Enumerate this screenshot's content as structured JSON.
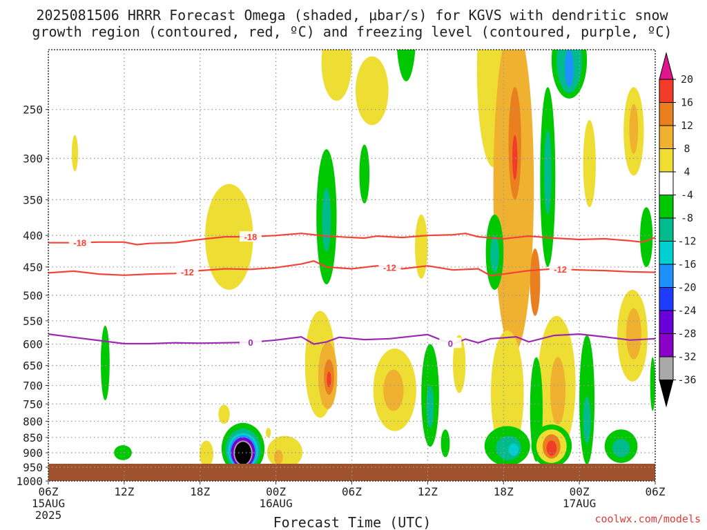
{
  "colors": {
    "plot_bg": "#ffffff",
    "grid": "#999999",
    "ground": "#a0522d",
    "dgz": "#f44336",
    "freezing": "#9c27b0",
    "credit": "#e53935",
    "text": "#222222"
  },
  "chart_data": {
    "type": "heatmap",
    "title": "2025081506 HRRR Forecast Omega (shaded, μbar/s) for KGVS with dendritic snow",
    "subtitle": "growth region (contoured, red, ºC) and freezing level (contoured, purple, ºC)",
    "xlabel": "Forecast Time (UTC)",
    "ylabel": "",
    "credit": "coolwx.com/models",
    "y_scale": "log-pressure",
    "ylim": [
      1000,
      200
    ],
    "xlim": [
      0,
      48
    ],
    "grid": true,
    "x_ticks": [
      {
        "hour": 0,
        "label": "06Z",
        "date": "15AUG",
        "year": "2025"
      },
      {
        "hour": 6,
        "label": "12Z"
      },
      {
        "hour": 12,
        "label": "18Z"
      },
      {
        "hour": 18,
        "label": "00Z",
        "date": "16AUG"
      },
      {
        "hour": 24,
        "label": "06Z"
      },
      {
        "hour": 30,
        "label": "12Z"
      },
      {
        "hour": 36,
        "label": "18Z"
      },
      {
        "hour": 42,
        "label": "00Z",
        "date": "17AUG"
      },
      {
        "hour": 48,
        "label": "06Z"
      }
    ],
    "y_ticks": [
      250,
      300,
      350,
      400,
      450,
      500,
      550,
      600,
      650,
      700,
      750,
      800,
      850,
      900,
      950,
      1000
    ],
    "colorbar": {
      "levels": [
        -36,
        -32,
        -28,
        -24,
        -20,
        -16,
        -12,
        -8,
        -4,
        4,
        8,
        12,
        16,
        20
      ],
      "labels": [
        "-36",
        "-32",
        "-28",
        "-24",
        "-20",
        "-16",
        "-12",
        "-8",
        "-4",
        "4",
        "8",
        "12",
        "16",
        "20"
      ],
      "colors": [
        "#000000",
        "#a9a9a9",
        "#8b00c8",
        "#6a00d8",
        "#1e3cff",
        "#1e90ff",
        "#00ced1",
        "#00bc8c",
        "#00c800",
        "#ffffff",
        "#eedd33",
        "#f0b030",
        "#ea7f20",
        "#f03c28",
        "#e0148c"
      ]
    },
    "contours": [
      {
        "value": -18,
        "label": "-18",
        "color": "#f44336",
        "points": [
          [
            0,
            411
          ],
          [
            2,
            411
          ],
          [
            4,
            410
          ],
          [
            6,
            410
          ],
          [
            7,
            414
          ],
          [
            8,
            412
          ],
          [
            10,
            411
          ],
          [
            12,
            406
          ],
          [
            14,
            402
          ],
          [
            16,
            402
          ],
          [
            18,
            400
          ],
          [
            20,
            397
          ],
          [
            22,
            401
          ],
          [
            24,
            403
          ],
          [
            25,
            404
          ],
          [
            26,
            401
          ],
          [
            28,
            403
          ],
          [
            30,
            400
          ],
          [
            32,
            399
          ],
          [
            33,
            397
          ],
          [
            34,
            402
          ],
          [
            36,
            405
          ],
          [
            38,
            401
          ],
          [
            40,
            404
          ],
          [
            42,
            406
          ],
          [
            44,
            405
          ],
          [
            46,
            408
          ],
          [
            47,
            410
          ],
          [
            48,
            403
          ]
        ],
        "label_hours": [
          2.5,
          16
        ]
      },
      {
        "value": -12,
        "label": "-12",
        "color": "#f44336",
        "points": [
          [
            0,
            460
          ],
          [
            2,
            457
          ],
          [
            4,
            462
          ],
          [
            6,
            464
          ],
          [
            8,
            462
          ],
          [
            10,
            461
          ],
          [
            12,
            456
          ],
          [
            14,
            453
          ],
          [
            16,
            454
          ],
          [
            18,
            451
          ],
          [
            20,
            445
          ],
          [
            21,
            440
          ],
          [
            22,
            450
          ],
          [
            24,
            453
          ],
          [
            26,
            448
          ],
          [
            28,
            453
          ],
          [
            30,
            448
          ],
          [
            32,
            455
          ],
          [
            34,
            453
          ],
          [
            35,
            465
          ],
          [
            36,
            462
          ],
          [
            38,
            456
          ],
          [
            40,
            453
          ],
          [
            42,
            455
          ],
          [
            44,
            456
          ],
          [
            46,
            458
          ],
          [
            48,
            459
          ]
        ],
        "label_hours": [
          11,
          27,
          40.5
        ]
      },
      {
        "value": 0,
        "label": "0",
        "color": "#9c27b0",
        "points": [
          [
            0,
            578
          ],
          [
            2,
            585
          ],
          [
            4,
            592
          ],
          [
            6,
            599
          ],
          [
            8,
            599
          ],
          [
            10,
            597
          ],
          [
            12,
            598
          ],
          [
            14,
            597
          ],
          [
            16,
            596
          ],
          [
            18,
            591
          ],
          [
            20,
            584
          ],
          [
            21,
            600
          ],
          [
            22,
            595
          ],
          [
            23,
            585
          ],
          [
            25,
            590
          ],
          [
            27,
            588
          ],
          [
            30,
            579
          ],
          [
            31,
            590
          ],
          [
            32,
            600
          ],
          [
            33,
            589
          ],
          [
            34,
            597
          ],
          [
            35,
            588
          ],
          [
            37,
            584
          ],
          [
            38,
            595
          ],
          [
            40,
            581
          ],
          [
            42,
            578
          ],
          [
            44,
            584
          ],
          [
            46,
            591
          ],
          [
            48,
            588
          ]
        ],
        "label_hours": [
          16,
          31.8
        ]
      }
    ],
    "regions": [
      {
        "class": "4-8",
        "cx": 22.8,
        "cy": 212,
        "rx": 1.2,
        "ry": 30
      },
      {
        "class": "4-8",
        "cx": 25.6,
        "cy": 235,
        "rx": 1.3,
        "ry": 30
      },
      {
        "class": "4-8",
        "cx": 2.1,
        "cy": 295,
        "rx": 0.25,
        "ry": 20
      },
      {
        "class": "4-8",
        "cx": 14.3,
        "cy": 410,
        "rx": 1.9,
        "ry": 80
      },
      {
        "class": "-8--4",
        "cx": 22,
        "cy": 385,
        "rx": 0.8,
        "ry": 95
      },
      {
        "class": "-12--8",
        "cx": 22,
        "cy": 380,
        "rx": 0.35,
        "ry": 45
      },
      {
        "class": "-8--4",
        "cx": 25,
        "cy": 320,
        "rx": 0.4,
        "ry": 35
      },
      {
        "class": "-8--4",
        "cx": 28.3,
        "cy": 180,
        "rx": 0.8,
        "ry": 45
      },
      {
        "class": "4-8",
        "cx": 29.5,
        "cy": 420,
        "rx": 0.5,
        "ry": 50
      },
      {
        "class": "4-8",
        "cx": 21.5,
        "cy": 660,
        "rx": 1.2,
        "ry": 130
      },
      {
        "class": "8-12",
        "cx": 22.1,
        "cy": 680,
        "rx": 0.75,
        "ry": 85
      },
      {
        "class": "12-16",
        "cx": 22.2,
        "cy": 680,
        "rx": 0.4,
        "ry": 45
      },
      {
        "class": "16-20",
        "cx": 22.2,
        "cy": 685,
        "rx": 0.17,
        "ry": 20
      },
      {
        "class": "4-8",
        "cx": 27.4,
        "cy": 720,
        "rx": 1.7,
        "ry": 110
      },
      {
        "class": "8-12",
        "cx": 27.3,
        "cy": 715,
        "rx": 0.8,
        "ry": 55
      },
      {
        "class": "-8--4",
        "cx": 30.2,
        "cy": 740,
        "rx": 0.7,
        "ry": 140
      },
      {
        "class": "-12--8",
        "cx": 30.2,
        "cy": 760,
        "rx": 0.3,
        "ry": 60
      },
      {
        "class": "-8--4",
        "cx": 31.4,
        "cy": 870,
        "rx": 0.35,
        "ry": 45
      },
      {
        "class": "4-8",
        "cx": 32.5,
        "cy": 650,
        "rx": 0.5,
        "ry": 70
      },
      {
        "class": "-8--4",
        "cx": 4.5,
        "cy": 650,
        "rx": 0.35,
        "ry": 90
      },
      {
        "class": "-8--4",
        "cx": 5.9,
        "cy": 900,
        "rx": 0.7,
        "ry": 25
      },
      {
        "class": "4-8",
        "cx": 13.9,
        "cy": 780,
        "rx": 0.45,
        "ry": 28
      },
      {
        "class": "4-8",
        "cx": 12.5,
        "cy": 905,
        "rx": 0.55,
        "ry": 45
      },
      {
        "class": "4-8",
        "cx": 18.7,
        "cy": 900,
        "rx": 1.4,
        "ry": 55
      },
      {
        "class": "8-12",
        "cx": 18.2,
        "cy": 915,
        "rx": 0.35,
        "ry": 25
      },
      {
        "class": "4-8",
        "cx": 17.4,
        "cy": 835,
        "rx": 0.2,
        "ry": 15
      },
      {
        "class": "-8--4",
        "cx": 15.4,
        "cy": 890,
        "rx": 1.7,
        "ry": 85
      },
      {
        "class": "-12--8",
        "cx": 15.4,
        "cy": 893,
        "rx": 1.4,
        "ry": 70
      },
      {
        "class": "-16--12",
        "cx": 15.4,
        "cy": 896,
        "rx": 1.2,
        "ry": 60
      },
      {
        "class": "-20--16",
        "cx": 15.4,
        "cy": 898,
        "rx": 1.05,
        "ry": 55
      },
      {
        "class": "-28--24",
        "cx": 15.4,
        "cy": 900,
        "rx": 0.95,
        "ry": 50
      },
      {
        "class": "-32--28",
        "cx": 15.4,
        "cy": 900,
        "rx": 0.85,
        "ry": 45
      },
      {
        "class": "-36--32",
        "cx": 15.4,
        "cy": 902,
        "rx": 0.75,
        "ry": 42
      },
      {
        "class": "<-36",
        "cx": 15.4,
        "cy": 902,
        "rx": 0.65,
        "ry": 38
      },
      {
        "class": "4-8",
        "cx": 35.2,
        "cy": 220,
        "rx": 1.3,
        "ry": 90
      },
      {
        "class": "8-12",
        "cx": 36.8,
        "cy": 400,
        "rx": 1.6,
        "ry": 220
      },
      {
        "class": "12-16",
        "cx": 36.9,
        "cy": 290,
        "rx": 0.5,
        "ry": 60
      },
      {
        "class": "16-20",
        "cx": 36.9,
        "cy": 300,
        "rx": 0.2,
        "ry": 25
      },
      {
        "class": "12-16",
        "cx": 38.5,
        "cy": 480,
        "rx": 0.4,
        "ry": 60
      },
      {
        "class": "-8--4",
        "cx": 35.3,
        "cy": 430,
        "rx": 0.7,
        "ry": 60
      },
      {
        "class": "-12--8",
        "cx": 35.3,
        "cy": 430,
        "rx": 0.35,
        "ry": 30
      },
      {
        "class": "-8--4",
        "cx": 39.5,
        "cy": 340,
        "rx": 0.6,
        "ry": 110
      },
      {
        "class": "-12--8",
        "cx": 39.5,
        "cy": 320,
        "rx": 0.3,
        "ry": 50
      },
      {
        "class": "-8--4",
        "cx": 41.2,
        "cy": 210,
        "rx": 1.4,
        "ry": 30
      },
      {
        "class": "-12--8",
        "cx": 41.2,
        "cy": 210,
        "rx": 1.0,
        "ry": 25
      },
      {
        "class": "-20--16",
        "cx": 41.2,
        "cy": 215,
        "rx": 0.35,
        "ry": 15
      },
      {
        "class": "4-8",
        "cx": 42.8,
        "cy": 310,
        "rx": 0.5,
        "ry": 50
      },
      {
        "class": "4-8",
        "cx": 46.3,
        "cy": 275,
        "rx": 0.8,
        "ry": 45
      },
      {
        "class": "8-12",
        "cx": 46.3,
        "cy": 270,
        "rx": 0.35,
        "ry": 25
      },
      {
        "class": "-8--4",
        "cx": 47.3,
        "cy": 405,
        "rx": 0.5,
        "ry": 45
      },
      {
        "class": "4-8",
        "cx": 46.2,
        "cy": 590,
        "rx": 1.2,
        "ry": 100
      },
      {
        "class": "8-12",
        "cx": 46.3,
        "cy": 580,
        "rx": 0.6,
        "ry": 55
      },
      {
        "class": "4-8",
        "cx": 36.3,
        "cy": 740,
        "rx": 1.3,
        "ry": 170
      },
      {
        "class": "4-8",
        "cx": 40.2,
        "cy": 720,
        "rx": 1.5,
        "ry": 180
      },
      {
        "class": "8-12",
        "cx": 40.3,
        "cy": 720,
        "rx": 0.6,
        "ry": 90
      },
      {
        "class": "-8--4",
        "cx": 36.3,
        "cy": 880,
        "rx": 1.8,
        "ry": 65
      },
      {
        "class": "-12--8",
        "cx": 36.4,
        "cy": 885,
        "rx": 1.0,
        "ry": 40
      },
      {
        "class": "-16--12",
        "cx": 36.8,
        "cy": 890,
        "rx": 0.4,
        "ry": 20
      },
      {
        "class": "-8--4",
        "cx": 38.6,
        "cy": 780,
        "rx": 0.5,
        "ry": 150
      },
      {
        "class": "-8--4",
        "cx": 39.8,
        "cy": 880,
        "rx": 1.6,
        "ry": 70
      },
      {
        "class": "4-8",
        "cx": 39.8,
        "cy": 880,
        "rx": 1.2,
        "ry": 55
      },
      {
        "class": "12-16",
        "cx": 39.8,
        "cy": 880,
        "rx": 0.7,
        "ry": 40
      },
      {
        "class": "16-20",
        "cx": 39.8,
        "cy": 885,
        "rx": 0.4,
        "ry": 25
      },
      {
        "class": "-8--4",
        "cx": 42.6,
        "cy": 760,
        "rx": 0.6,
        "ry": 180
      },
      {
        "class": "-12--8",
        "cx": 42.6,
        "cy": 800,
        "rx": 0.3,
        "ry": 70
      },
      {
        "class": "-8--4",
        "cx": 45.3,
        "cy": 880,
        "rx": 1.3,
        "ry": 55
      },
      {
        "class": "-12--8",
        "cx": 45.3,
        "cy": 885,
        "rx": 0.7,
        "ry": 30
      },
      {
        "class": "-8--4",
        "cx": 47.8,
        "cy": 700,
        "rx": 0.2,
        "ry": 70
      }
    ]
  }
}
